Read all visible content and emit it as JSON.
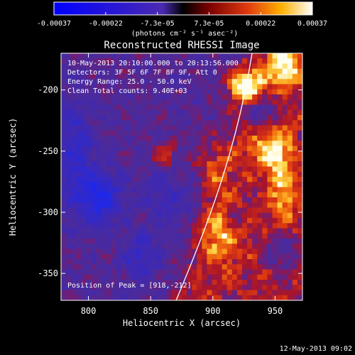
{
  "chart_data": {
    "type": "heatmap",
    "title": "Reconstructed RHESSI Image",
    "xlabel": "Heliocentric X (arcsec)",
    "ylabel": "Heliocentric Y (arcsec)",
    "xlim": [
      778,
      972
    ],
    "ylim": [
      -372,
      -170
    ],
    "x_ticks": [
      800,
      850,
      900,
      950
    ],
    "y_ticks": [
      -200,
      -250,
      -300,
      -350
    ],
    "colorbar": {
      "range": [
        -0.00037,
        0.00037
      ],
      "tick_labels": [
        "-0.00037",
        "-0.00022",
        "-7.3e-05",
        "7.3e-05",
        "0.00022",
        "0.00037"
      ],
      "unit_label": "(photons cm⁻² s⁻¹ asec⁻²)"
    },
    "annotations": [
      "10-May-2013 20:10:00.000 to 20:13:56.000",
      "Detectors: 3F 5F 6F 7F 8F 9F, Att 0",
      "Energy Range: 25.0 - 50.0 keV",
      "Clean     Total counts: 9.40E+03"
    ],
    "peak_label": "Position of Peak = [918,-212]",
    "peak_position": [
      918,
      -212
    ],
    "date_stamp": "12-May-2013 09:02",
    "grid": false,
    "colors": {
      "negative": "#1a2bff",
      "neutral": "#4a2a9a",
      "positive_mid": "#e03a10",
      "positive_high": "#ffffff",
      "limb_line": "#ffffff"
    }
  }
}
